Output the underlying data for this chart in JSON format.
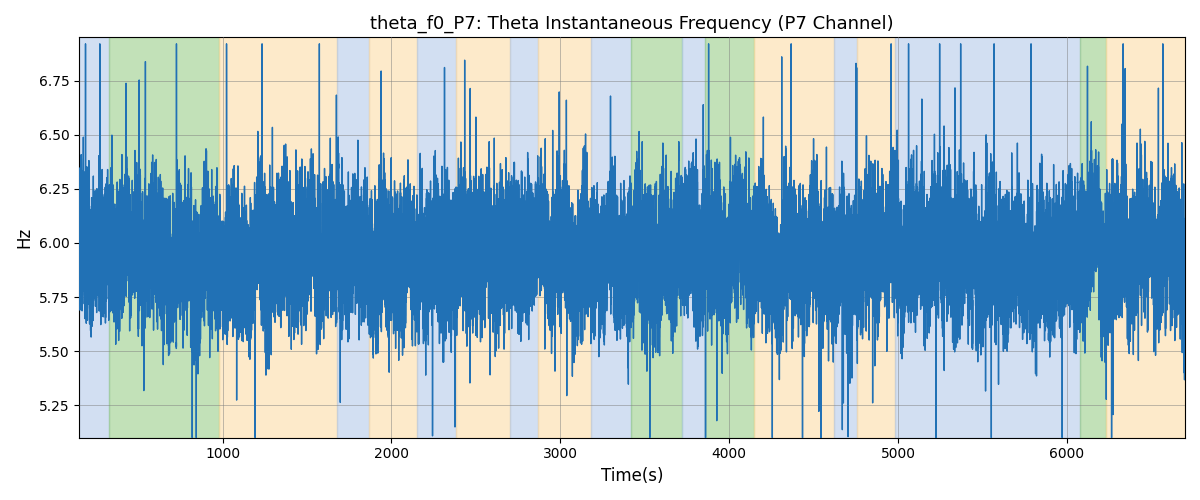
{
  "title": "theta_f0_P7: Theta Instantaneous Frequency (P7 Channel)",
  "xlabel": "Time(s)",
  "ylabel": "Hz",
  "xlim": [
    150,
    6700
  ],
  "ylim": [
    5.1,
    6.95
  ],
  "yticks": [
    5.25,
    5.5,
    5.75,
    6.0,
    6.25,
    6.5,
    6.75
  ],
  "xticks": [
    1000,
    2000,
    3000,
    4000,
    5000,
    6000
  ],
  "line_color": "#2171b5",
  "line_width": 1.0,
  "background_color": "#ffffff",
  "bands": [
    {
      "xmin": 150,
      "xmax": 330,
      "color": "#aec6e8",
      "alpha": 0.55
    },
    {
      "xmin": 330,
      "xmax": 980,
      "color": "#90c97e",
      "alpha": 0.55
    },
    {
      "xmin": 980,
      "xmax": 1680,
      "color": "#fdd9a0",
      "alpha": 0.55
    },
    {
      "xmin": 1680,
      "xmax": 1870,
      "color": "#aec6e8",
      "alpha": 0.55
    },
    {
      "xmin": 1870,
      "xmax": 2150,
      "color": "#fdd9a0",
      "alpha": 0.55
    },
    {
      "xmin": 2150,
      "xmax": 2380,
      "color": "#aec6e8",
      "alpha": 0.55
    },
    {
      "xmin": 2380,
      "xmax": 2700,
      "color": "#fdd9a0",
      "alpha": 0.55
    },
    {
      "xmin": 2700,
      "xmax": 2870,
      "color": "#aec6e8",
      "alpha": 0.55
    },
    {
      "xmin": 2870,
      "xmax": 3180,
      "color": "#fdd9a0",
      "alpha": 0.55
    },
    {
      "xmin": 3180,
      "xmax": 3420,
      "color": "#aec6e8",
      "alpha": 0.55
    },
    {
      "xmin": 3420,
      "xmax": 3720,
      "color": "#90c97e",
      "alpha": 0.55
    },
    {
      "xmin": 3720,
      "xmax": 3860,
      "color": "#aec6e8",
      "alpha": 0.55
    },
    {
      "xmin": 3860,
      "xmax": 4150,
      "color": "#90c97e",
      "alpha": 0.55
    },
    {
      "xmin": 4150,
      "xmax": 4620,
      "color": "#fdd9a0",
      "alpha": 0.55
    },
    {
      "xmin": 4620,
      "xmax": 4760,
      "color": "#aec6e8",
      "alpha": 0.55
    },
    {
      "xmin": 4760,
      "xmax": 4980,
      "color": "#fdd9a0",
      "alpha": 0.55
    },
    {
      "xmin": 4980,
      "xmax": 6080,
      "color": "#aec6e8",
      "alpha": 0.55
    },
    {
      "xmin": 6080,
      "xmax": 6230,
      "color": "#90c97e",
      "alpha": 0.55
    },
    {
      "xmin": 6230,
      "xmax": 6700,
      "color": "#fdd9a0",
      "alpha": 0.55
    }
  ],
  "seed": 12345,
  "t_start": 150,
  "t_end": 6700,
  "mean_freq": 5.95,
  "noise_scale": 0.13,
  "spike_amplitude": 0.55,
  "n_spikes": 200
}
